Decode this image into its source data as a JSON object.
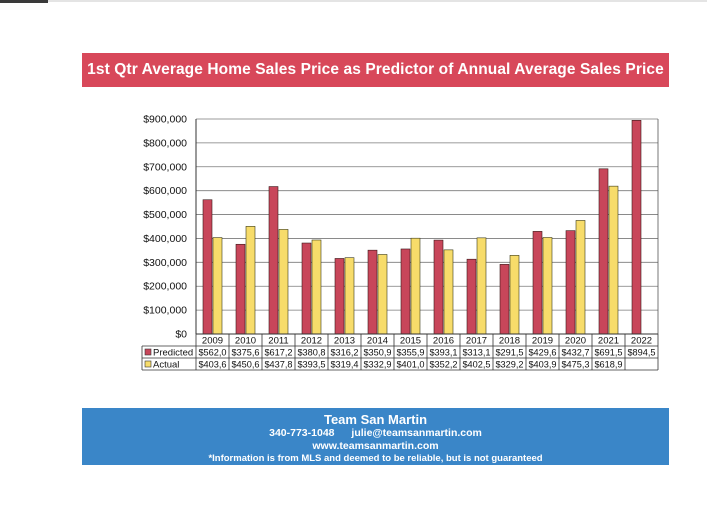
{
  "header": {
    "title": "1st Qtr Average Home Sales Price as Predictor of Annual Average Sales Price"
  },
  "footer": {
    "org": "Team San Martin",
    "phone": "340-773-1048",
    "email": "julie@teamsanmartin.com",
    "website": "www.teamsanmartin.com",
    "disclaimer": "*Information is from MLS and deemed to be reliable, but is not guaranteed"
  },
  "colors": {
    "header_band": "#d8485a",
    "footer_band": "#3a86c8",
    "predicted": "#c8465a",
    "actual": "#f7dc6a"
  },
  "chart_data": {
    "type": "bar",
    "categories": [
      "2009",
      "2010",
      "2011",
      "2012",
      "2013",
      "2014",
      "2015",
      "2016",
      "2017",
      "2018",
      "2019",
      "2020",
      "2021",
      "2022"
    ],
    "series": [
      {
        "name": "Predicted",
        "values": [
          562000,
          375600,
          617200,
          380800,
          316200,
          350900,
          355900,
          393100,
          313100,
          291500,
          429600,
          432700,
          691500,
          894500
        ],
        "table_labels": [
          "$562,0",
          "$375,6",
          "$617,2",
          "$380,8",
          "$316,2",
          "$350,9",
          "$355,9",
          "$393,1",
          "$313,1",
          "$291,5",
          "$429,6",
          "$432,7",
          "$691,5",
          "$894,5"
        ]
      },
      {
        "name": "Actual",
        "values": [
          403600,
          450600,
          437800,
          393500,
          319400,
          332900,
          401000,
          352200,
          402500,
          329200,
          403900,
          475300,
          618900,
          null
        ],
        "table_labels": [
          "$403,6",
          "$450,6",
          "$437,8",
          "$393,5",
          "$319,4",
          "$332,9",
          "$401,0",
          "$352,2",
          "$402,5",
          "$329,2",
          "$403,9",
          "$475,3",
          "$618,9",
          ""
        ]
      }
    ],
    "ylim": [
      0,
      900000
    ],
    "y_ticks": [
      0,
      100000,
      200000,
      300000,
      400000,
      500000,
      600000,
      700000,
      800000,
      900000
    ],
    "y_tick_labels": [
      "$0",
      "$100,000",
      "$200,000",
      "$300,000",
      "$400,000",
      "$500,000",
      "$600,000",
      "$700,000",
      "$800,000",
      "$900,000"
    ],
    "grid": true,
    "legend": "data-table"
  }
}
